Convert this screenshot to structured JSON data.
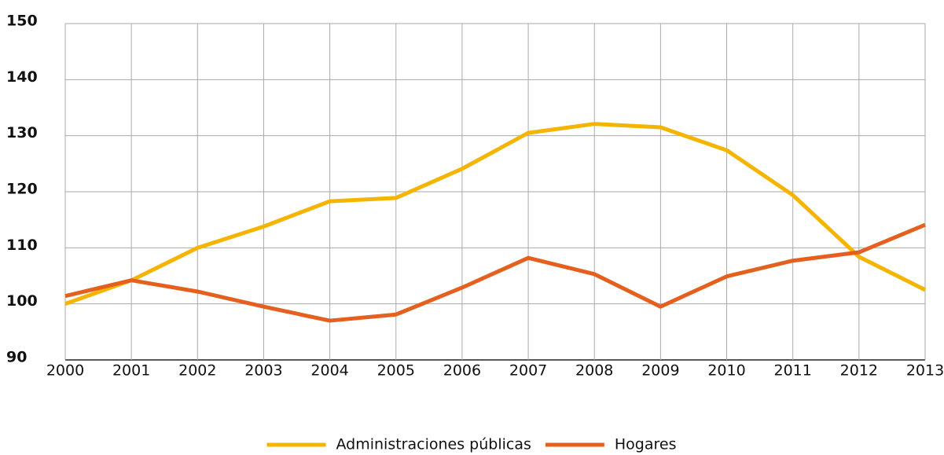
{
  "chart_data": {
    "type": "line",
    "x": [
      2000,
      2001,
      2002,
      2003,
      2004,
      2005,
      2006,
      2007,
      2008,
      2009,
      2010,
      2011,
      2012,
      2013
    ],
    "series": [
      {
        "name": "Administraciones públicas",
        "color": "#f5b400",
        "values": [
          100,
          104.2,
          110,
          113.8,
          118.3,
          118.9,
          124.1,
          130.5,
          132.1,
          131.5,
          127.4,
          119.4,
          108.4,
          102.5
        ]
      },
      {
        "name": "Hogares",
        "color": "#e5601e",
        "values": [
          101.4,
          104.2,
          102.2,
          99.5,
          97,
          98.1,
          102.9,
          108.2,
          105.3,
          99.5,
          104.9,
          107.7,
          109.2,
          114.1
        ]
      }
    ],
    "xlim": [
      2000,
      2013
    ],
    "xticks": [
      2000,
      2001,
      2002,
      2003,
      2004,
      2005,
      2006,
      2007,
      2008,
      2009,
      2010,
      2011,
      2012,
      2013
    ],
    "ylim": [
      90,
      150
    ],
    "yticks": [
      90,
      100,
      110,
      120,
      130,
      140,
      150
    ],
    "grid": true,
    "legend": "bottom"
  }
}
